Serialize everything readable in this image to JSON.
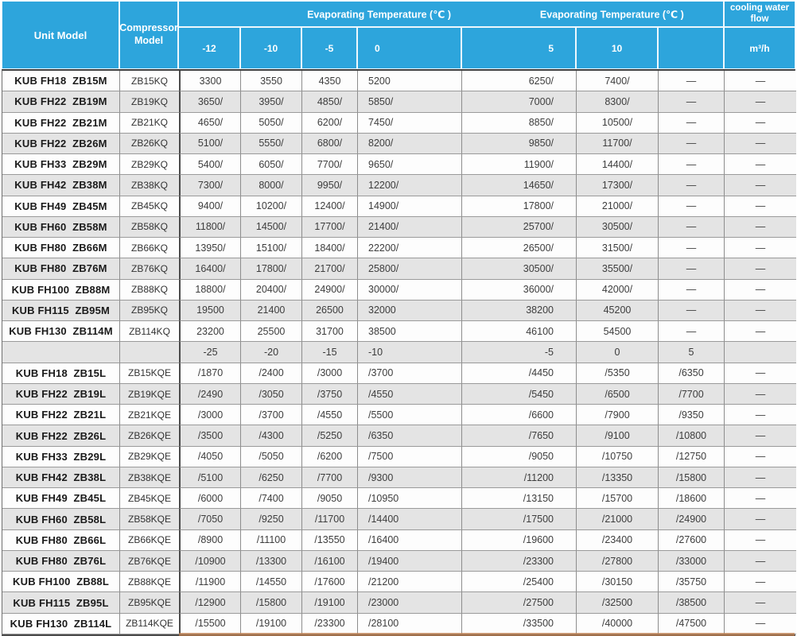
{
  "header": {
    "unit_model": "Unit Model",
    "compressor_model": "Compressor Model",
    "evap_label_1": "Evaporating Temperature (℃ )",
    "evap_label_2": "Evaporating Temperature (℃ )",
    "cooling_water_flow": "cooling water flow",
    "flow_unit": "m³/h",
    "temp_cols": [
      "-12",
      "-10",
      "-5",
      "0",
      "5",
      "10",
      ""
    ]
  },
  "colors": {
    "header_blue": "#2da5dc",
    "stripe_gray": "#e4e4e4",
    "border_gray": "#8d8d8d",
    "heavy_border": "#4a4a4a",
    "bottom_sliver_orange": "#c27e4a"
  },
  "rows": [
    {
      "type": "data",
      "unit": "KUB FH18  ZB15M",
      "comp": "ZB15KQ",
      "values": [
        "3300",
        "3550",
        "4350",
        "5200",
        "6250/",
        "7400/",
        "—",
        "—"
      ]
    },
    {
      "type": "data",
      "unit": "KUB FH22  ZB19M",
      "comp": "ZB19KQ",
      "values": [
        "3650/",
        "3950/",
        "4850/",
        "5850/",
        "7000/",
        "8300/",
        "—",
        "—"
      ]
    },
    {
      "type": "data",
      "unit": "KUB FH22  ZB21M",
      "comp": "ZB21KQ",
      "values": [
        "4650/",
        "5050/",
        "6200/",
        "7450/",
        "8850/",
        "10500/",
        "—",
        "—"
      ]
    },
    {
      "type": "data",
      "unit": "KUB FH22  ZB26M",
      "comp": "ZB26KQ",
      "values": [
        "5100/",
        "5550/",
        "6800/",
        "8200/",
        "9850/",
        "11700/",
        "—",
        "—"
      ]
    },
    {
      "type": "data",
      "unit": "KUB FH33  ZB29M",
      "comp": "ZB29KQ",
      "values": [
        "5400/",
        "6050/",
        "7700/",
        "9650/",
        "11900/",
        "14400/",
        "—",
        "—"
      ]
    },
    {
      "type": "data",
      "unit": "KUB FH42  ZB38M",
      "comp": "ZB38KQ",
      "values": [
        "7300/",
        "8000/",
        "9950/",
        "12200/",
        "14650/",
        "17300/",
        "—",
        "—"
      ]
    },
    {
      "type": "data",
      "unit": "KUB FH49  ZB45M",
      "comp": "ZB45KQ",
      "values": [
        "9400/",
        "10200/",
        "12400/",
        "14900/",
        "17800/",
        "21000/",
        "—",
        "—"
      ]
    },
    {
      "type": "data",
      "unit": "KUB FH60  ZB58M",
      "comp": "ZB58KQ",
      "values": [
        "11800/",
        "14500/",
        "17700/",
        "21400/",
        "25700/",
        "30500/",
        "—",
        "—"
      ]
    },
    {
      "type": "data",
      "unit": "KUB FH80  ZB66M",
      "comp": "ZB66KQ",
      "values": [
        "13950/",
        "15100/",
        "18400/",
        "22200/",
        "26500/",
        "31500/",
        "—",
        "—"
      ]
    },
    {
      "type": "data",
      "unit": "KUB FH80  ZB76M",
      "comp": "ZB76KQ",
      "values": [
        "16400/",
        "17800/",
        "21700/",
        "25800/",
        "30500/",
        "35500/",
        "—",
        "—"
      ]
    },
    {
      "type": "data",
      "unit": "KUB FH100  ZB88M",
      "comp": "ZB88KQ",
      "values": [
        "18800/",
        "20400/",
        "24900/",
        "30000/",
        "36000/",
        "42000/",
        "—",
        "—"
      ]
    },
    {
      "type": "data",
      "unit": "KUB FH115  ZB95M",
      "comp": "ZB95KQ",
      "values": [
        "19500",
        "21400",
        "26500",
        "32000",
        "38200",
        "45200",
        "—",
        "—"
      ]
    },
    {
      "type": "data",
      "unit": "KUB FH130  ZB114M",
      "comp": "ZB114KQ",
      "values": [
        "23200",
        "25500",
        "31700",
        "38500",
        "46100",
        "54500",
        "—",
        "—"
      ]
    },
    {
      "type": "separator",
      "unit": "",
      "comp": "",
      "values": [
        "-25",
        "-20",
        "-15",
        "-10",
        "-5",
        "0",
        "5",
        ""
      ]
    },
    {
      "type": "data",
      "unit": "KUB FH18  ZB15L",
      "comp": "ZB15KQE",
      "values": [
        "/1870",
        "/2400",
        "/3000",
        "/3700",
        "/4450",
        "/5350",
        "/6350",
        "—"
      ]
    },
    {
      "type": "data",
      "unit": "KUB FH22  ZB19L",
      "comp": "ZB19KQE",
      "values": [
        "/2490",
        "/3050",
        "/3750",
        "/4550",
        "/5450",
        "/6500",
        "/7700",
        "—"
      ]
    },
    {
      "type": "data",
      "unit": "KUB FH22  ZB21L",
      "comp": "ZB21KQE",
      "values": [
        "/3000",
        "/3700",
        "/4550",
        "/5500",
        "/6600",
        "/7900",
        "/9350",
        "—"
      ]
    },
    {
      "type": "data",
      "unit": "KUB FH22  ZB26L",
      "comp": "ZB26KQE",
      "values": [
        "/3500",
        "/4300",
        "/5250",
        "/6350",
        "/7650",
        "/9100",
        "/10800",
        "—"
      ]
    },
    {
      "type": "data",
      "unit": "KUB FH33  ZB29L",
      "comp": "ZB29KQE",
      "values": [
        "/4050",
        "/5050",
        "/6200",
        "/7500",
        "/9050",
        "/10750",
        "/12750",
        "—"
      ]
    },
    {
      "type": "data",
      "unit": "KUB FH42  ZB38L",
      "comp": "ZB38KQE",
      "values": [
        "/5100",
        "/6250",
        "/7700",
        "/9300",
        "/11200",
        "/13350",
        "/15800",
        "—"
      ]
    },
    {
      "type": "data",
      "unit": "KUB FH49  ZB45L",
      "comp": "ZB45KQE",
      "values": [
        "/6000",
        "/7400",
        "/9050",
        "/10950",
        "/13150",
        "/15700",
        "/18600",
        "—"
      ]
    },
    {
      "type": "data",
      "unit": "KUB FH60  ZB58L",
      "comp": "ZB58KQE",
      "values": [
        "/7050",
        "/9250",
        "/11700",
        "/14400",
        "/17500",
        "/21000",
        "/24900",
        "—"
      ]
    },
    {
      "type": "data",
      "unit": "KUB FH80  ZB66L",
      "comp": "ZB66KQE",
      "values": [
        "/8900",
        "/11100",
        "/13550",
        "/16400",
        "/19600",
        "/23400",
        "/27600",
        "—"
      ]
    },
    {
      "type": "data",
      "unit": "KUB FH80  ZB76L",
      "comp": "ZB76KQE",
      "values": [
        "/10900",
        "/13300",
        "/16100",
        "/19400",
        "/23300",
        "/27800",
        "/33000",
        "—"
      ]
    },
    {
      "type": "data",
      "unit": "KUB FH100  ZB88L",
      "comp": "ZB88KQE",
      "values": [
        "/11900",
        "/14550",
        "/17600",
        "/21200",
        "/25400",
        "/30150",
        "/35750",
        "—"
      ]
    },
    {
      "type": "data",
      "unit": "KUB FH115  ZB95L",
      "comp": "ZB95KQE",
      "values": [
        "/12900",
        "/15800",
        "/19100",
        "/23000",
        "/27500",
        "/32500",
        "/38500",
        "—"
      ]
    },
    {
      "type": "data",
      "unit": "KUB FH130  ZB114L",
      "comp": "ZB114KQE",
      "values": [
        "/15500",
        "/19100",
        "/23300",
        "/28100",
        "/33500",
        "/40000",
        "/47500",
        "—"
      ]
    }
  ]
}
